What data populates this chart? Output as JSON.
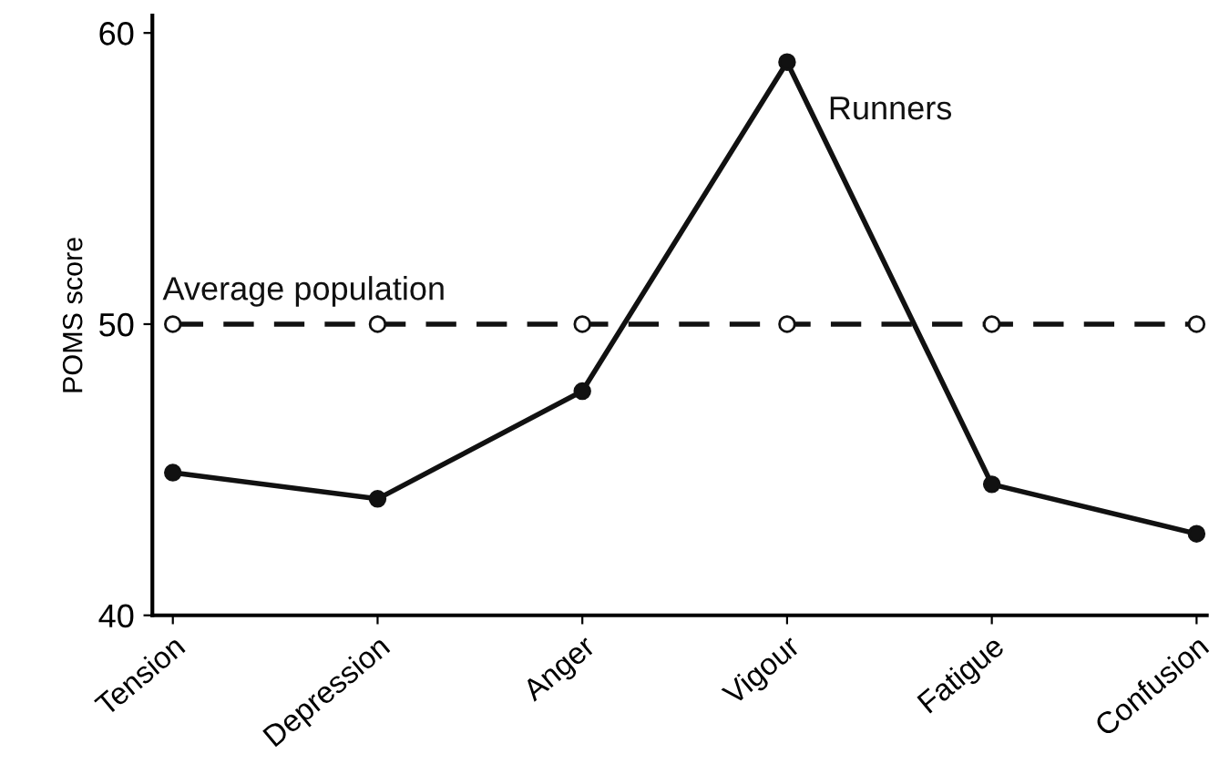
{
  "chart_data": {
    "type": "line",
    "ylabel": "POMS score",
    "categories": [
      "Tension",
      "Depression",
      "Anger",
      "Vigour",
      "Fatigue",
      "Confusion"
    ],
    "series": [
      {
        "name": "Runners",
        "color": "#111111",
        "line_style": "solid",
        "values": [
          44.9,
          44.0,
          47.7,
          59.0,
          44.5,
          42.8
        ]
      },
      {
        "name": "Average population",
        "color": "#111111",
        "line_style": "dashed",
        "values": [
          50,
          50,
          50,
          50,
          50,
          50
        ]
      }
    ],
    "ylim": [
      40,
      60.6
    ],
    "yticks": [
      40,
      50,
      60
    ],
    "marker": "circle",
    "grid": false,
    "legend": false
  }
}
